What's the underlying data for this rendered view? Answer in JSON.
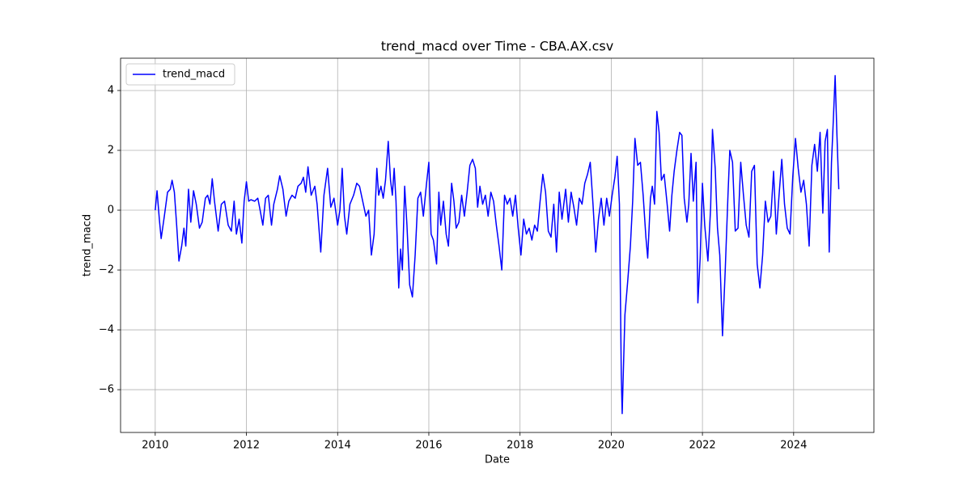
{
  "chart_data": {
    "type": "line",
    "title": "trend_macd over Time - CBA.AX.csv",
    "xlabel": "Date",
    "ylabel": "trend_macd",
    "x": [
      2010.0,
      2010.04,
      2010.09,
      2010.13,
      2010.2,
      2010.27,
      2010.33,
      2010.37,
      2010.42,
      2010.47,
      2010.52,
      2010.58,
      2010.63,
      2010.67,
      2010.73,
      2010.78,
      2010.84,
      2010.9,
      2010.97,
      2011.03,
      2011.1,
      2011.15,
      2011.2,
      2011.25,
      2011.3,
      2011.38,
      2011.45,
      2011.52,
      2011.6,
      2011.67,
      2011.73,
      2011.78,
      2011.84,
      2011.9,
      2011.95,
      2012.0,
      2012.05,
      2012.1,
      2012.18,
      2012.25,
      2012.3,
      2012.36,
      2012.42,
      2012.48,
      2012.55,
      2012.6,
      2012.68,
      2012.73,
      2012.8,
      2012.87,
      2012.93,
      2013.0,
      2013.07,
      2013.13,
      2013.2,
      2013.25,
      2013.3,
      2013.35,
      2013.42,
      2013.5,
      2013.55,
      2013.63,
      2013.7,
      2013.78,
      2013.85,
      2013.92,
      2014.0,
      2014.05,
      2014.1,
      2014.15,
      2014.2,
      2014.27,
      2014.35,
      2014.42,
      2014.48,
      2014.55,
      2014.62,
      2014.68,
      2014.74,
      2014.8,
      2014.86,
      2014.9,
      2014.95,
      2015.0,
      2015.05,
      2015.11,
      2015.16,
      2015.2,
      2015.24,
      2015.28,
      2015.34,
      2015.38,
      2015.42,
      2015.47,
      2015.52,
      2015.58,
      2015.64,
      2015.7,
      2015.76,
      2015.82,
      2015.88,
      2015.95,
      2016.0,
      2016.05,
      2016.1,
      2016.17,
      2016.22,
      2016.26,
      2016.32,
      2016.38,
      2016.43,
      2016.5,
      2016.55,
      2016.6,
      2016.66,
      2016.72,
      2016.78,
      2016.84,
      2016.9,
      2016.96,
      2017.02,
      2017.07,
      2017.12,
      2017.18,
      2017.24,
      2017.3,
      2017.36,
      2017.42,
      2017.48,
      2017.54,
      2017.6,
      2017.66,
      2017.72,
      2017.78,
      2017.84,
      2017.9,
      2017.96,
      2018.02,
      2018.08,
      2018.14,
      2018.2,
      2018.26,
      2018.32,
      2018.38,
      2018.44,
      2018.5,
      2018.56,
      2018.62,
      2018.68,
      2018.74,
      2018.8,
      2018.86,
      2018.92,
      2019.0,
      2019.06,
      2019.12,
      2019.18,
      2019.24,
      2019.3,
      2019.36,
      2019.42,
      2019.48,
      2019.54,
      2019.6,
      2019.66,
      2019.72,
      2019.78,
      2019.84,
      2019.9,
      2019.96,
      2020.02,
      2020.08,
      2020.13,
      2020.18,
      2020.22,
      2020.24,
      2020.3,
      2020.36,
      2020.42,
      2020.47,
      2020.52,
      2020.58,
      2020.64,
      2020.7,
      2020.76,
      2020.8,
      2020.86,
      2020.9,
      2020.95,
      2021.0,
      2021.05,
      2021.1,
      2021.16,
      2021.22,
      2021.28,
      2021.33,
      2021.38,
      2021.44,
      2021.5,
      2021.55,
      2021.6,
      2021.66,
      2021.7,
      2021.75,
      2021.8,
      2021.86,
      2021.9,
      2021.95,
      2022.0,
      2022.05,
      2022.12,
      2022.18,
      2022.22,
      2022.28,
      2022.33,
      2022.38,
      2022.44,
      2022.5,
      2022.56,
      2022.6,
      2022.66,
      2022.72,
      2022.78,
      2022.84,
      2022.9,
      2022.96,
      2023.02,
      2023.08,
      2023.14,
      2023.2,
      2023.26,
      2023.32,
      2023.38,
      2023.44,
      2023.5,
      2023.56,
      2023.62,
      2023.68,
      2023.74,
      2023.8,
      2023.86,
      2023.92,
      2023.98,
      2024.04,
      2024.1,
      2024.16,
      2024.22,
      2024.28,
      2024.34,
      2024.4,
      2024.46,
      2024.52,
      2024.58,
      2024.64,
      2024.69,
      2024.74,
      2024.78,
      2024.83,
      2024.87,
      2024.91,
      2024.95,
      2024.99
    ],
    "series": [
      {
        "name": "trend_macd",
        "color": "#0000ff",
        "values": [
          0,
          0.65,
          -0.3,
          -0.95,
          -0.2,
          0.6,
          0.7,
          1.0,
          0.6,
          -0.5,
          -1.7,
          -1.2,
          -0.6,
          -1.2,
          0.7,
          -0.4,
          0.65,
          0.2,
          -0.6,
          -0.4,
          0.4,
          0.5,
          0.2,
          1.05,
          0.3,
          -0.7,
          0.2,
          0.3,
          -0.5,
          -0.7,
          0.3,
          -0.8,
          -0.3,
          -1.1,
          0.3,
          0.95,
          0.3,
          0.35,
          0.3,
          0.4,
          0,
          -0.5,
          0.4,
          0.5,
          -0.5,
          0.2,
          0.7,
          1.15,
          0.7,
          -0.2,
          0.3,
          0.5,
          0.4,
          0.8,
          0.9,
          1.1,
          0.6,
          1.45,
          0.5,
          0.8,
          0.2,
          -1.4,
          0.5,
          1.4,
          0.1,
          0.4,
          -0.5,
          0,
          1.4,
          -0.2,
          -0.8,
          0.2,
          0.5,
          0.9,
          0.8,
          0.3,
          -0.2,
          0,
          -1.5,
          -0.8,
          1.4,
          0.5,
          0.8,
          0.4,
          1.0,
          2.3,
          1.0,
          0.5,
          1.4,
          0.3,
          -2.6,
          -1.3,
          -2.0,
          0.8,
          -0.5,
          -2.5,
          -2.9,
          -1.5,
          0.4,
          0.6,
          -0.2,
          0.9,
          1.6,
          -0.8,
          -1.0,
          -1.8,
          0.6,
          -0.5,
          0.3,
          -0.8,
          -1.2,
          0.9,
          0.3,
          -0.6,
          -0.4,
          0.5,
          -0.2,
          0.6,
          1.5,
          1.7,
          1.4,
          0.1,
          0.8,
          0.2,
          0.5,
          -0.2,
          0.6,
          0.3,
          -0.5,
          -1.2,
          -2.0,
          0.5,
          0.2,
          0.4,
          -0.2,
          0.5,
          -0.6,
          -1.5,
          -0.3,
          -0.8,
          -0.6,
          -1.0,
          -0.5,
          -0.7,
          0.3,
          1.2,
          0.6,
          -0.7,
          -0.9,
          0.2,
          -1.4,
          0.6,
          -0.3,
          0.7,
          -0.4,
          0.6,
          0.1,
          -0.5,
          0.4,
          0.2,
          0.9,
          1.2,
          1.6,
          0.2,
          -1.4,
          -0.3,
          0.4,
          -0.5,
          0.4,
          -0.2,
          0.5,
          1.1,
          1.8,
          0.2,
          -5.5,
          -6.8,
          -3.5,
          -2.4,
          -1.2,
          0.3,
          2.4,
          1.5,
          1.6,
          0.5,
          -0.9,
          -1.6,
          0.4,
          0.8,
          0.2,
          3.3,
          2.6,
          1.0,
          1.2,
          0.3,
          -0.7,
          0.5,
          1.3,
          2.0,
          2.6,
          2.5,
          0.4,
          -0.4,
          0.2,
          1.9,
          0.3,
          1.6,
          -3.1,
          -1.6,
          0.9,
          -0.5,
          -1.7,
          0.1,
          2.7,
          1.4,
          -0.6,
          -1.5,
          -4.2,
          -2.0,
          0.5,
          2.0,
          1.6,
          -0.7,
          -0.6,
          1.6,
          0.5,
          -0.5,
          -0.9,
          1.3,
          1.5,
          -1.8,
          -2.6,
          -1.5,
          0.3,
          -0.4,
          -0.2,
          1.3,
          -0.8,
          0.5,
          1.7,
          0.2,
          -0.6,
          -0.8,
          1.1,
          2.4,
          1.4,
          0.6,
          1.0,
          0.2,
          -1.2,
          1.5,
          2.2,
          1.3,
          2.6,
          -0.1,
          2.3,
          2.7,
          -1.4,
          1.6,
          3.0,
          4.5,
          2.5,
          0.7
        ]
      }
    ],
    "xlim": [
      2009.24,
      2025.76
    ],
    "ylim": [
      -7.43,
      5.08
    ],
    "xticks": [
      2010,
      2012,
      2014,
      2016,
      2018,
      2020,
      2022,
      2024
    ],
    "yticks": [
      {
        "value": -6,
        "label": "−6"
      },
      {
        "value": -4,
        "label": "−4"
      },
      {
        "value": -2,
        "label": "−2"
      },
      0,
      2,
      4
    ],
    "grid": true,
    "legend": "upper left"
  }
}
